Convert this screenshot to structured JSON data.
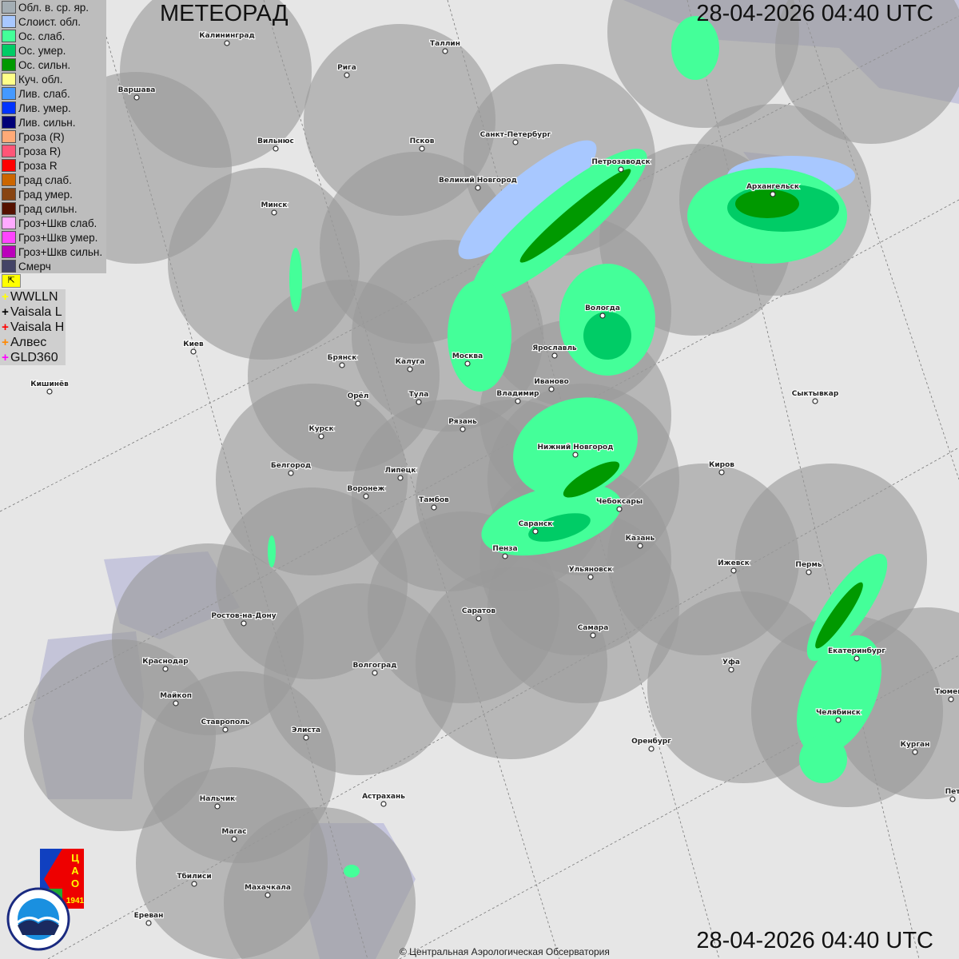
{
  "header": {
    "title": "МЕТЕОРАД",
    "timestamp": "28-04-2026  04:40 UTC"
  },
  "footer": {
    "timestamp": "28-04-2026  04:40 UTC",
    "copyright": "© Центральная Аэрологическая Обсерватория"
  },
  "legend": [
    {
      "label": "Обл. в. ср. яр.",
      "color": "#a4aeb4"
    },
    {
      "label": "Слоист. обл.",
      "color": "#a8c8ff"
    },
    {
      "label": "Ос. слаб.",
      "color": "#44ff99"
    },
    {
      "label": "Ос. умер.",
      "color": "#00cc66"
    },
    {
      "label": "Ос. сильн.",
      "color": "#009900"
    },
    {
      "label": "Куч. обл.",
      "color": "#ffff88"
    },
    {
      "label": "Лив. слаб.",
      "color": "#4499ff"
    },
    {
      "label": "Лив. умер.",
      "color": "#0033ff"
    },
    {
      "label": "Лив. сильн.",
      "color": "#000077"
    },
    {
      "label": "Гроза (R)",
      "color": "#ffaa77"
    },
    {
      "label": "Гроза R)",
      "color": "#ff5577"
    },
    {
      "label": "Гроза R",
      "color": "#ff0000"
    },
    {
      "label": "Град слаб.",
      "color": "#cc6600"
    },
    {
      "label": "Град умер.",
      "color": "#884411"
    },
    {
      "label": "Град сильн.",
      "color": "#551100"
    },
    {
      "label": "Гроз+Шкв слаб.",
      "color": "#ffaaff"
    },
    {
      "label": "Гроз+Шкв умер.",
      "color": "#ff44ff"
    },
    {
      "label": "Гроз+Шкв сильн.",
      "color": "#bb00bb"
    },
    {
      "label": "Смерч",
      "color": "#444466"
    }
  ],
  "lightning": [
    {
      "label": "WWLLN",
      "color": "#ffff00"
    },
    {
      "label": "Vaisala L",
      "color": "#000000"
    },
    {
      "label": "Vaisala H",
      "color": "#ff0000"
    },
    {
      "label": "Алвес",
      "color": "#ff8800"
    },
    {
      "label": "GLD360",
      "color": "#ff00ff"
    }
  ],
  "logos": {
    "cao": "ЦАО 1941",
    "roshydromet": "РОСГИДРОМЕТ ROSHYDROMET"
  },
  "cities": [
    "Калининград",
    "Рига",
    "Таллин",
    "Варшава",
    "Вильнюс",
    "Псков",
    "Санкт-Петербург",
    "Петрозаводск",
    "Архангельск",
    "Великий Новгород",
    "Минск",
    "Вологда",
    "Ярославль",
    "Москва",
    "Калуга",
    "Брянск",
    "Киев",
    "Кишинёв",
    "Иваново",
    "Владимир",
    "Тула",
    "Орёл",
    "Сыктывкар",
    "Рязань",
    "Курск",
    "Нижний Новгород",
    "Белгород",
    "Липецк",
    "Киров",
    "Воронеж",
    "Тамбов",
    "Чебоксары",
    "Саранск",
    "Казань",
    "Пенза",
    "Ульяновск",
    "Ижевск",
    "Пермь",
    "Ростов-на-Дону",
    "Саратов",
    "Самара",
    "Краснодар",
    "Волгоград",
    "Уфа",
    "Екатеринбург",
    "Майкоп",
    "Челябинск",
    "Тюмень",
    "Ставрополь",
    "Элиста",
    "Оренбург",
    "Курган",
    "Астрахань",
    "Нальчик",
    "Магас",
    "Тбилиси",
    "Махачкала",
    "Ереван",
    "Пет"
  ]
}
